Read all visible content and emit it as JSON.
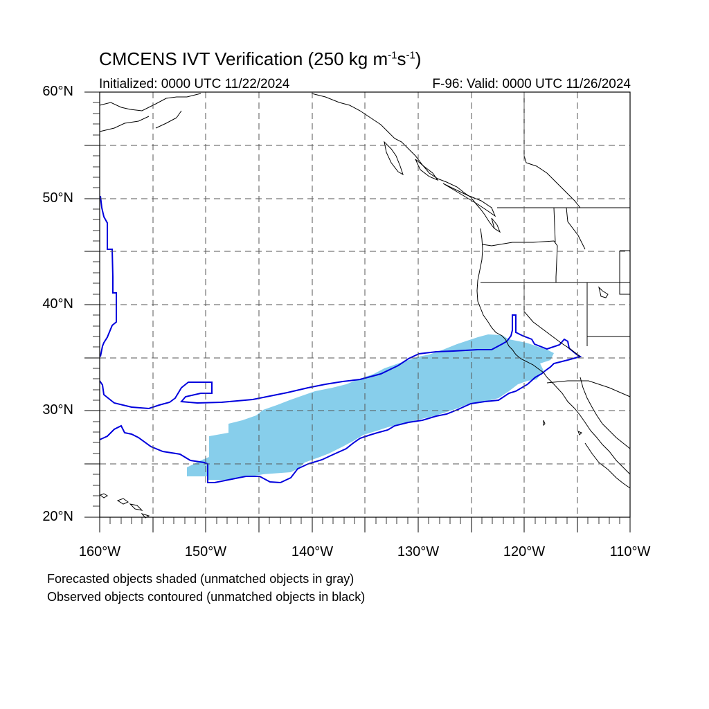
{
  "header": {
    "title_main": "CMCENS IVT Verification (250 kg m",
    "title_exp1": "-1",
    "title_mid": "s",
    "title_exp2": "-1",
    "title_end": ")",
    "initialized": "Initialized: 0000 UTC 11/22/2024",
    "valid": "F-96: Valid: 0000 UTC 11/26/2024"
  },
  "axes": {
    "lat_labels": [
      "60°N",
      "50°N",
      "40°N",
      "30°N",
      "20°N"
    ],
    "lon_labels": [
      "160°W",
      "150°W",
      "140°W",
      "130°W",
      "120°W",
      "110°W"
    ],
    "lat_range": [
      20,
      60
    ],
    "lon_range": [
      -160,
      -110
    ]
  },
  "legend": {
    "line1": "Forecasted objects shaded (unmatched objects in gray)",
    "line2": "Observed objects contoured (unmatched objects in black)"
  },
  "colors": {
    "forecast_shade": "#87ceeb",
    "observed_contour": "#0000dd",
    "coastline": "#000000",
    "grid": "#555555"
  }
}
